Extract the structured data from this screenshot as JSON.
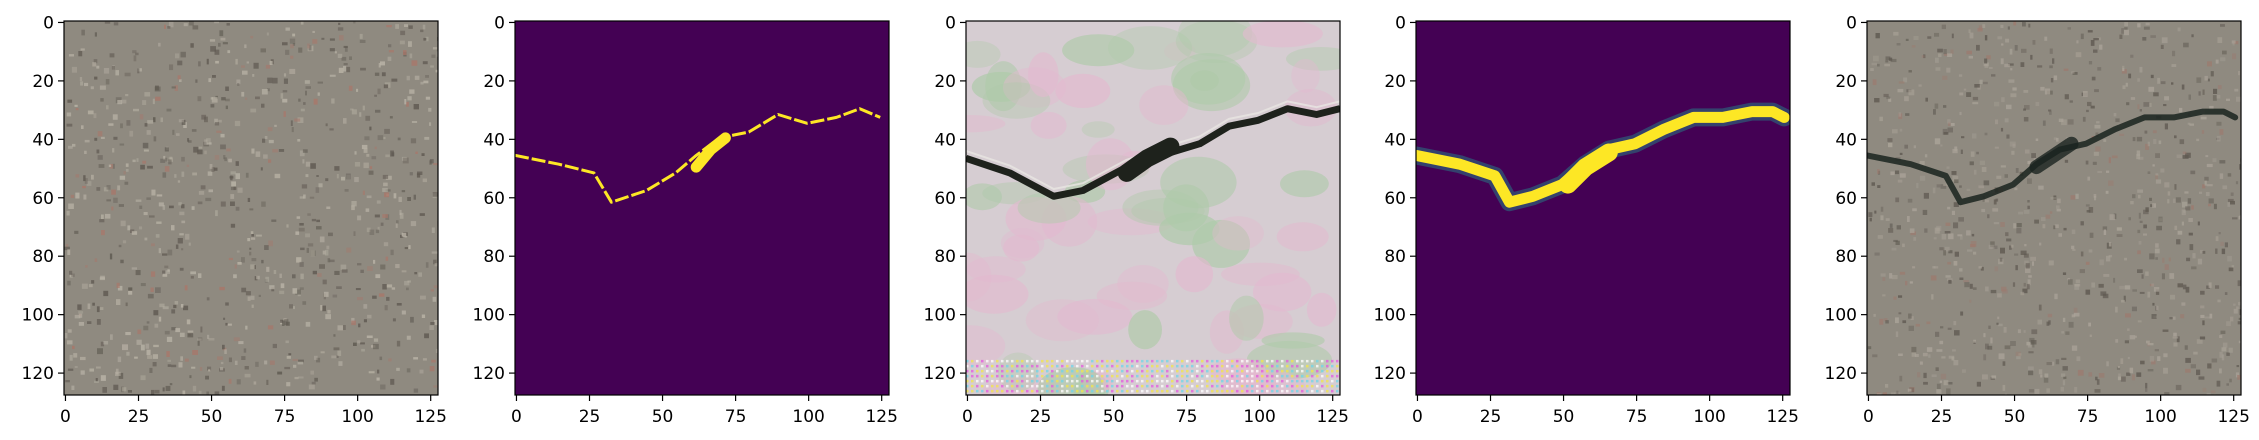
{
  "chart_data": [
    {
      "type": "image",
      "content": "pavement surface photo",
      "xlim": [
        0,
        128
      ],
      "ylim": [
        128,
        0
      ],
      "xticks": [
        0,
        25,
        50,
        75,
        100,
        125
      ],
      "yticks": [
        0,
        20,
        40,
        60,
        80,
        100,
        120
      ],
      "colors": {
        "base": "#8f8a80",
        "dark": "#605a52",
        "light": "#b9b3a6",
        "speck": "#a8776a"
      }
    },
    {
      "type": "heatmap",
      "content": "binary crack mask",
      "xlim": [
        0,
        128
      ],
      "ylim": [
        128,
        0
      ],
      "xticks": [
        0,
        25,
        50,
        75,
        100,
        125
      ],
      "yticks": [
        0,
        20,
        40,
        60,
        80,
        100,
        120
      ],
      "crack_path": [
        [
          0,
          46
        ],
        [
          15,
          49
        ],
        [
          27,
          52
        ],
        [
          33,
          62
        ],
        [
          45,
          58
        ],
        [
          55,
          52
        ],
        [
          62,
          46
        ],
        [
          70,
          40
        ],
        [
          80,
          38
        ],
        [
          90,
          32
        ],
        [
          100,
          35
        ],
        [
          110,
          33
        ],
        [
          118,
          30
        ],
        [
          125,
          33
        ]
      ],
      "colors": {
        "background": "#440154",
        "foreground": "#fde725"
      }
    },
    {
      "type": "image",
      "content": "generated crack texture",
      "xlim": [
        0,
        128
      ],
      "ylim": [
        128,
        0
      ],
      "xticks": [
        0,
        25,
        50,
        75,
        100,
        125
      ],
      "yticks": [
        0,
        20,
        40,
        60,
        80,
        100,
        120
      ],
      "crack_path": [
        [
          0,
          47
        ],
        [
          15,
          52
        ],
        [
          30,
          60
        ],
        [
          40,
          58
        ],
        [
          55,
          50
        ],
        [
          70,
          45
        ],
        [
          80,
          42
        ],
        [
          90,
          36
        ],
        [
          100,
          34
        ],
        [
          110,
          30
        ],
        [
          120,
          32
        ],
        [
          128,
          30
        ]
      ],
      "colors": {
        "base": "#d6cdd2",
        "pink": "#e3b9cf",
        "green": "#aecaa9",
        "crack": "#1e221c"
      }
    },
    {
      "type": "heatmap",
      "content": "predicted crack map",
      "xlim": [
        0,
        128
      ],
      "ylim": [
        128,
        0
      ],
      "xticks": [
        0,
        25,
        50,
        75,
        100,
        125
      ],
      "yticks": [
        0,
        20,
        40,
        60,
        80,
        100,
        120
      ],
      "crack_path": [
        [
          0,
          46
        ],
        [
          15,
          49
        ],
        [
          27,
          53
        ],
        [
          32,
          62
        ],
        [
          40,
          60
        ],
        [
          50,
          56
        ],
        [
          58,
          49
        ],
        [
          66,
          44
        ],
        [
          75,
          42
        ],
        [
          85,
          37
        ],
        [
          95,
          33
        ],
        [
          105,
          33
        ],
        [
          115,
          31
        ],
        [
          122,
          31
        ],
        [
          126,
          33
        ]
      ],
      "colors": {
        "background": "#440154",
        "foreground": "#fde725",
        "mid": "#21918c"
      }
    },
    {
      "type": "image",
      "content": "pavement photo with crack overlay",
      "xlim": [
        0,
        128
      ],
      "ylim": [
        128,
        0
      ],
      "xticks": [
        0,
        25,
        50,
        75,
        100,
        125
      ],
      "yticks": [
        0,
        20,
        40,
        60,
        80,
        100,
        120
      ],
      "crack_path": [
        [
          0,
          46
        ],
        [
          15,
          49
        ],
        [
          27,
          53
        ],
        [
          32,
          62
        ],
        [
          40,
          60
        ],
        [
          50,
          56
        ],
        [
          58,
          49
        ],
        [
          66,
          44
        ],
        [
          75,
          42
        ],
        [
          85,
          37
        ],
        [
          95,
          33
        ],
        [
          105,
          33
        ],
        [
          115,
          31
        ],
        [
          122,
          31
        ],
        [
          126,
          33
        ]
      ],
      "colors": {
        "base": "#8f8a80",
        "dark": "#605a52",
        "crack": "#1a231f"
      }
    }
  ]
}
